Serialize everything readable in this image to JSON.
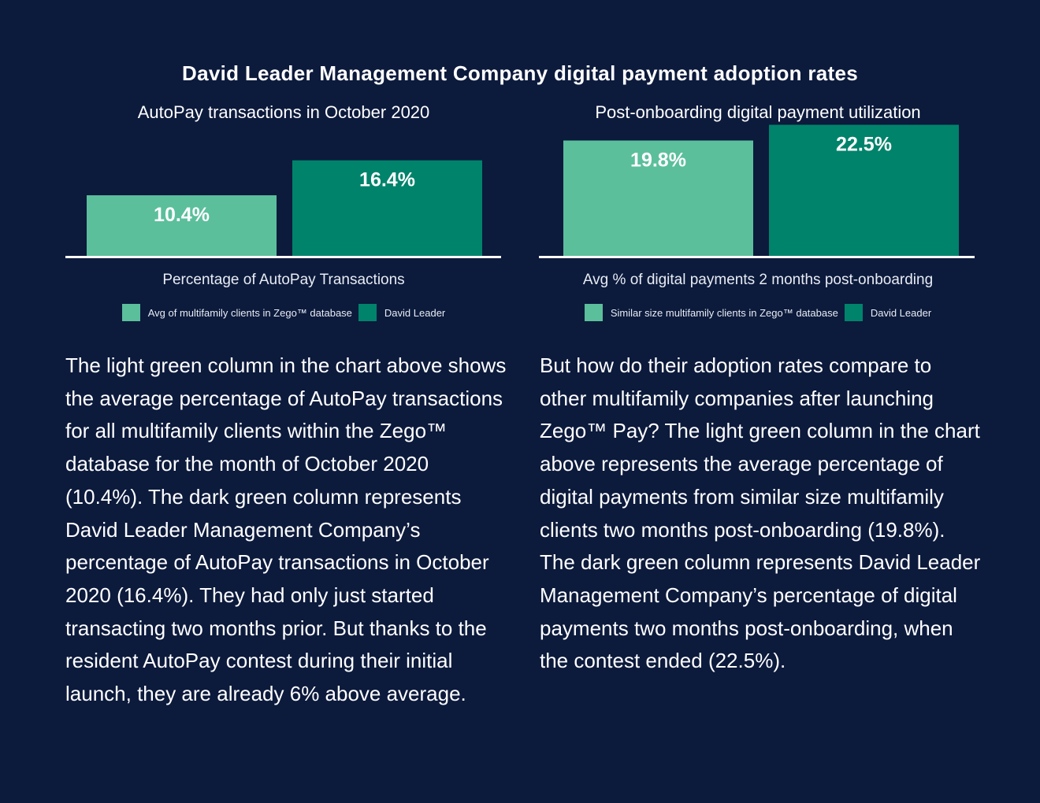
{
  "page_title": "David Leader Management Company digital payment adoption rates",
  "colors": {
    "background": "#0c1a3c",
    "light_green": "#5bbf9c",
    "dark_green": "#00836b"
  },
  "chart_data": [
    {
      "type": "bar",
      "title": "AutoPay transactions in October 2020",
      "xlabel": "Percentage of AutoPay Transactions",
      "ylabel": "",
      "categories": [
        "Avg of multifamily clients in Zego™ database",
        "David Leader"
      ],
      "values": [
        10.4,
        16.4
      ],
      "value_labels": [
        "10.4%",
        "16.4%"
      ],
      "ylim": [
        0,
        25
      ],
      "grid": false,
      "legend": "bottom",
      "legend_entries": [
        "Avg of multifamily clients in Zego™ database",
        "David Leader"
      ]
    },
    {
      "type": "bar",
      "title": "Post-onboarding digital payment utilization",
      "xlabel": "Avg % of digital payments 2 months post-onboarding",
      "ylabel": "",
      "categories": [
        "Similar size multifamily clients in Zego™ database",
        "David Leader"
      ],
      "values": [
        19.8,
        22.5
      ],
      "value_labels": [
        "19.8%",
        "22.5%"
      ],
      "ylim": [
        0,
        25
      ],
      "grid": false,
      "legend": "bottom",
      "legend_entries": [
        "Similar size multifamily clients in Zego™ database",
        "David Leader"
      ]
    }
  ],
  "body": {
    "left": "The light green column in the chart above shows the average percentage of AutoPay transactions for all multifamily clients within the Zego™ database for the month of October 2020 (10.4%). The dark green column represents David Leader Management Company’s percentage of AutoPay transactions in October 2020 (16.4%). They had only just started transacting two months prior. But thanks to the resident AutoPay contest during their initial launch, they are already 6% above average.",
    "right": "But how do their adoption rates compare to other multifamily companies after launching Zego™ Pay? The light green column in the chart above represents the average percentage of digital payments from similar size multifamily clients two months post-onboarding (19.8%). The dark green column represents David Leader Management Company’s percentage of digital payments two months post-onboarding, when the contest ended (22.5%)."
  }
}
